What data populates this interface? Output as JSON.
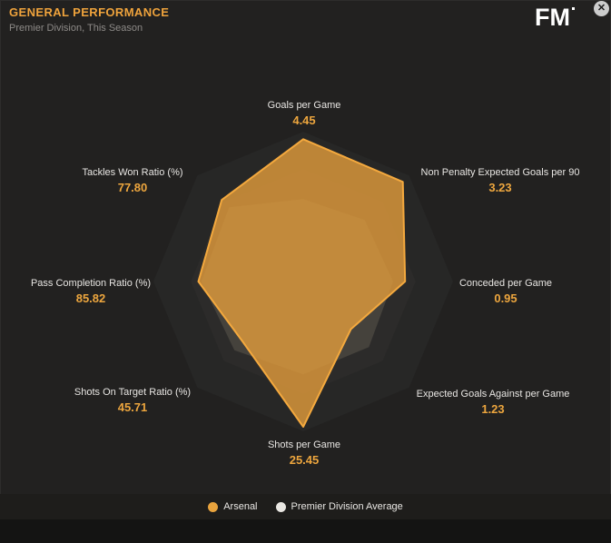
{
  "header": {
    "title": "GENERAL PERFORMANCE",
    "subtitle": "Premier Division, This Season",
    "logo": "FM"
  },
  "window": {
    "close_icon": "✕"
  },
  "colors": {
    "accent_orange": "#e8a33d",
    "background": "#222120",
    "label_text": "#e8e6e3",
    "subtitle_text": "#8d8a87"
  },
  "chart_data": {
    "type": "radar",
    "title": "GENERAL PERFORMANCE",
    "subtitle": "Premier Division, This Season",
    "legend_position": "bottom",
    "grid": "concentric-octagons",
    "axes": [
      {
        "label": "Goals per Game",
        "value": "4.45"
      },
      {
        "label": "Non Penalty Expected Goals per 90",
        "value": "3.23"
      },
      {
        "label": "Conceded per Game",
        "value": "0.95"
      },
      {
        "label": "Expected Goals Against per Game",
        "value": "1.23"
      },
      {
        "label": "Shots per Game",
        "value": "25.45"
      },
      {
        "label": "Shots On Target Ratio (%)",
        "value": "45.71"
      },
      {
        "label": "Pass Completion Ratio (%)",
        "value": "85.82"
      },
      {
        "label": "Tackles Won Ratio (%)",
        "value": "77.80"
      }
    ],
    "series": [
      {
        "name": "Arsenal",
        "legend_color": "#e8a33d",
        "fill": "#de9a3c",
        "fill_opacity": 0.82,
        "stroke": "#f4a93e",
        "values_normalized": [
          0.95,
          0.94,
          0.68,
          0.45,
          0.97,
          0.57,
          0.7,
          0.77
        ]
      },
      {
        "name": "Premier Division Average",
        "legend_color": "#e9e7e2",
        "fill": "#45423c",
        "fill_opacity": 1,
        "stroke": "none",
        "values_normalized": [
          0.55,
          0.58,
          0.6,
          0.62,
          0.62,
          0.65,
          0.68,
          0.7
        ]
      }
    ]
  }
}
